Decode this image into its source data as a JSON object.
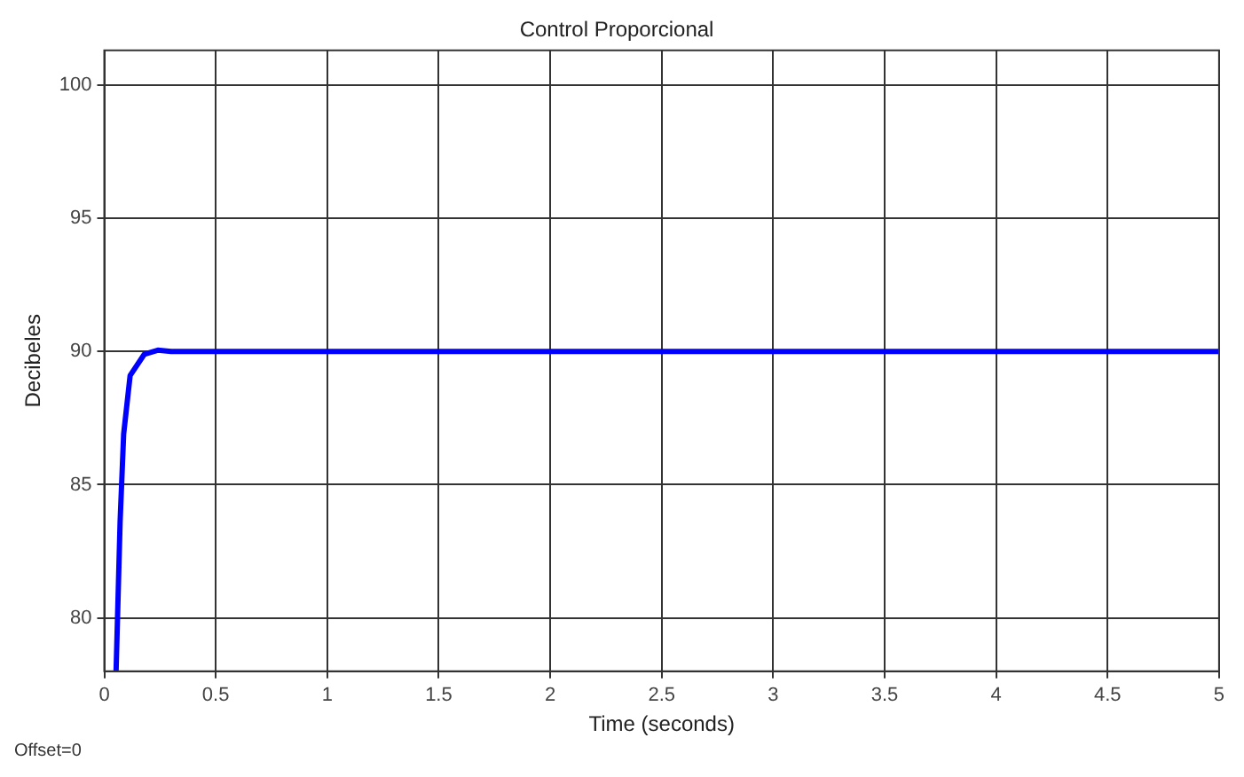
{
  "chart_data": {
    "type": "line",
    "title": "Control Proporcional",
    "xlabel": "Time (seconds)",
    "ylabel": "Decibeles",
    "annotations": [
      "Offset=0"
    ],
    "series": [
      {
        "color": "#0000ff",
        "x": [
          0.053,
          0.071,
          0.087,
          0.116,
          0.18,
          0.24,
          0.3,
          5
        ],
        "values": [
          78,
          83.6,
          86.9,
          89.1,
          89.9,
          90.05,
          90,
          90
        ]
      }
    ],
    "xlim": [
      0,
      5
    ],
    "xticks": [
      0,
      0.5,
      1,
      1.5,
      2,
      2.5,
      3,
      3.5,
      4,
      4.5,
      5
    ],
    "ylim": [
      78,
      101.3
    ],
    "yticks": [
      80,
      85,
      90,
      95,
      100
    ],
    "grid": true,
    "legend": false,
    "marker": "none",
    "line_style": "solid"
  }
}
